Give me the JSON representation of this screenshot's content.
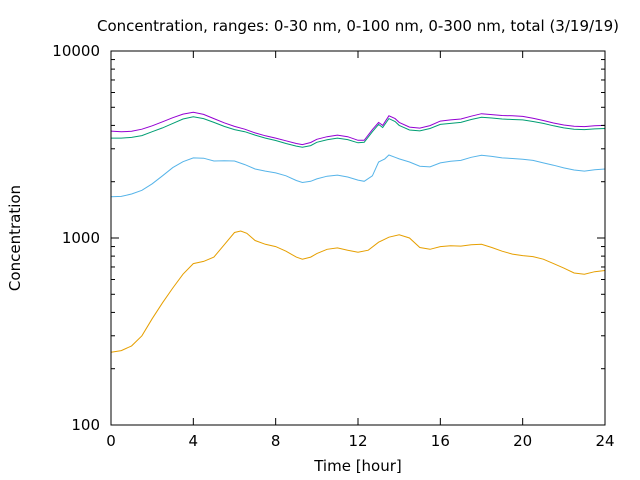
{
  "chart_data": {
    "type": "line",
    "title": "Concentration, ranges: 0-30 nm, 0-100 nm, 0-300 nm, total (3/19/19)",
    "xlabel": "Time [hour]",
    "ylabel": "Concentration",
    "xlim": [
      0,
      24
    ],
    "ylim": [
      100,
      10000
    ],
    "yscale": "log",
    "grid": false,
    "legend": "none",
    "x_ticks": [
      0,
      4,
      8,
      12,
      16,
      20,
      24
    ],
    "x_tick_labels": [
      "0",
      "4",
      "8",
      "12",
      "16",
      "20",
      "24"
    ],
    "y_ticks": [
      100,
      1000,
      10000
    ],
    "y_tick_labels": [
      "100",
      "1000",
      "10000"
    ],
    "series": [
      {
        "color": "#e69f00",
        "points": [
          [
            0,
            245
          ],
          [
            0.5,
            250
          ],
          [
            1,
            265
          ],
          [
            1.5,
            300
          ],
          [
            2,
            370
          ],
          [
            2.5,
            450
          ],
          [
            3,
            540
          ],
          [
            3.5,
            640
          ],
          [
            4,
            730
          ],
          [
            4.5,
            750
          ],
          [
            5,
            790
          ],
          [
            5.5,
            920
          ],
          [
            6,
            1070
          ],
          [
            6.3,
            1090
          ],
          [
            6.6,
            1060
          ],
          [
            7,
            970
          ],
          [
            7.5,
            925
          ],
          [
            8,
            900
          ],
          [
            8.5,
            850
          ],
          [
            9,
            790
          ],
          [
            9.3,
            770
          ],
          [
            9.7,
            790
          ],
          [
            10,
            825
          ],
          [
            10.5,
            870
          ],
          [
            11,
            885
          ],
          [
            11.5,
            860
          ],
          [
            12,
            840
          ],
          [
            12.5,
            860
          ],
          [
            13,
            950
          ],
          [
            13.5,
            1010
          ],
          [
            14,
            1040
          ],
          [
            14.5,
            1000
          ],
          [
            15,
            890
          ],
          [
            15.5,
            870
          ],
          [
            16,
            900
          ],
          [
            16.5,
            910
          ],
          [
            17,
            905
          ],
          [
            17.5,
            920
          ],
          [
            18,
            925
          ],
          [
            18.5,
            890
          ],
          [
            19,
            850
          ],
          [
            19.5,
            820
          ],
          [
            20,
            805
          ],
          [
            20.5,
            795
          ],
          [
            21,
            770
          ],
          [
            21.5,
            730
          ],
          [
            22,
            690
          ],
          [
            22.5,
            650
          ],
          [
            23,
            640
          ],
          [
            23.5,
            660
          ],
          [
            24,
            670
          ]
        ]
      },
      {
        "color": "#56b4e9",
        "points": [
          [
            0,
            1660
          ],
          [
            0.5,
            1670
          ],
          [
            1,
            1720
          ],
          [
            1.5,
            1800
          ],
          [
            2,
            1950
          ],
          [
            2.5,
            2150
          ],
          [
            3,
            2380
          ],
          [
            3.5,
            2560
          ],
          [
            4,
            2680
          ],
          [
            4.5,
            2670
          ],
          [
            5,
            2580
          ],
          [
            5.5,
            2590
          ],
          [
            6,
            2580
          ],
          [
            6.5,
            2470
          ],
          [
            7,
            2340
          ],
          [
            7.5,
            2280
          ],
          [
            8,
            2230
          ],
          [
            8.5,
            2150
          ],
          [
            9,
            2030
          ],
          [
            9.3,
            1980
          ],
          [
            9.7,
            2010
          ],
          [
            10,
            2070
          ],
          [
            10.5,
            2140
          ],
          [
            11,
            2170
          ],
          [
            11.5,
            2120
          ],
          [
            12,
            2040
          ],
          [
            12.3,
            2010
          ],
          [
            12.7,
            2150
          ],
          [
            13,
            2550
          ],
          [
            13.3,
            2650
          ],
          [
            13.5,
            2780
          ],
          [
            13.8,
            2700
          ],
          [
            14,
            2650
          ],
          [
            14.5,
            2550
          ],
          [
            15,
            2420
          ],
          [
            15.5,
            2400
          ],
          [
            16,
            2520
          ],
          [
            16.5,
            2570
          ],
          [
            17,
            2600
          ],
          [
            17.5,
            2700
          ],
          [
            18,
            2770
          ],
          [
            18.5,
            2730
          ],
          [
            19,
            2680
          ],
          [
            19.5,
            2660
          ],
          [
            20,
            2640
          ],
          [
            20.5,
            2600
          ],
          [
            21,
            2520
          ],
          [
            21.5,
            2450
          ],
          [
            22,
            2370
          ],
          [
            22.5,
            2310
          ],
          [
            23,
            2280
          ],
          [
            23.5,
            2320
          ],
          [
            24,
            2340
          ]
        ]
      },
      {
        "color": "#009e73",
        "points": [
          [
            0,
            3420
          ],
          [
            0.5,
            3420
          ],
          [
            1,
            3450
          ],
          [
            1.5,
            3530
          ],
          [
            2,
            3700
          ],
          [
            2.5,
            3880
          ],
          [
            3,
            4100
          ],
          [
            3.5,
            4330
          ],
          [
            4,
            4450
          ],
          [
            4.5,
            4350
          ],
          [
            5,
            4150
          ],
          [
            5.5,
            3950
          ],
          [
            6,
            3800
          ],
          [
            6.5,
            3700
          ],
          [
            7,
            3550
          ],
          [
            7.5,
            3420
          ],
          [
            8,
            3320
          ],
          [
            8.5,
            3200
          ],
          [
            9,
            3100
          ],
          [
            9.3,
            3060
          ],
          [
            9.7,
            3120
          ],
          [
            10,
            3250
          ],
          [
            10.5,
            3350
          ],
          [
            11,
            3420
          ],
          [
            11.5,
            3360
          ],
          [
            12,
            3230
          ],
          [
            12.3,
            3250
          ],
          [
            12.7,
            3700
          ],
          [
            13,
            4050
          ],
          [
            13.2,
            3900
          ],
          [
            13.5,
            4350
          ],
          [
            13.8,
            4200
          ],
          [
            14,
            4000
          ],
          [
            14.5,
            3780
          ],
          [
            15,
            3740
          ],
          [
            15.5,
            3850
          ],
          [
            16,
            4050
          ],
          [
            16.5,
            4100
          ],
          [
            17,
            4150
          ],
          [
            17.5,
            4300
          ],
          [
            18,
            4420
          ],
          [
            18.5,
            4380
          ],
          [
            19,
            4330
          ],
          [
            19.5,
            4300
          ],
          [
            20,
            4280
          ],
          [
            20.5,
            4200
          ],
          [
            21,
            4100
          ],
          [
            21.5,
            3980
          ],
          [
            22,
            3880
          ],
          [
            22.5,
            3820
          ],
          [
            23,
            3800
          ],
          [
            23.5,
            3830
          ],
          [
            24,
            3850
          ]
        ]
      },
      {
        "color": "#9400d3",
        "points": [
          [
            0,
            3730
          ],
          [
            0.5,
            3700
          ],
          [
            1,
            3720
          ],
          [
            1.5,
            3820
          ],
          [
            2,
            3980
          ],
          [
            2.5,
            4180
          ],
          [
            3,
            4400
          ],
          [
            3.5,
            4600
          ],
          [
            4,
            4700
          ],
          [
            4.5,
            4580
          ],
          [
            5,
            4350
          ],
          [
            5.5,
            4130
          ],
          [
            6,
            3950
          ],
          [
            6.5,
            3820
          ],
          [
            7,
            3650
          ],
          [
            7.5,
            3520
          ],
          [
            8,
            3420
          ],
          [
            8.5,
            3310
          ],
          [
            9,
            3200
          ],
          [
            9.3,
            3160
          ],
          [
            9.7,
            3240
          ],
          [
            10,
            3370
          ],
          [
            10.5,
            3480
          ],
          [
            11,
            3550
          ],
          [
            11.5,
            3480
          ],
          [
            12,
            3330
          ],
          [
            12.3,
            3330
          ],
          [
            12.7,
            3800
          ],
          [
            13,
            4150
          ],
          [
            13.2,
            4000
          ],
          [
            13.5,
            4500
          ],
          [
            13.8,
            4350
          ],
          [
            14,
            4150
          ],
          [
            14.5,
            3920
          ],
          [
            15,
            3870
          ],
          [
            15.5,
            3990
          ],
          [
            16,
            4220
          ],
          [
            16.5,
            4280
          ],
          [
            17,
            4330
          ],
          [
            17.5,
            4480
          ],
          [
            18,
            4620
          ],
          [
            18.5,
            4570
          ],
          [
            19,
            4520
          ],
          [
            19.5,
            4500
          ],
          [
            20,
            4470
          ],
          [
            20.5,
            4370
          ],
          [
            21,
            4250
          ],
          [
            21.5,
            4120
          ],
          [
            22,
            4020
          ],
          [
            22.5,
            3960
          ],
          [
            23,
            3940
          ],
          [
            23.5,
            3980
          ],
          [
            24,
            4000
          ]
        ]
      }
    ]
  }
}
